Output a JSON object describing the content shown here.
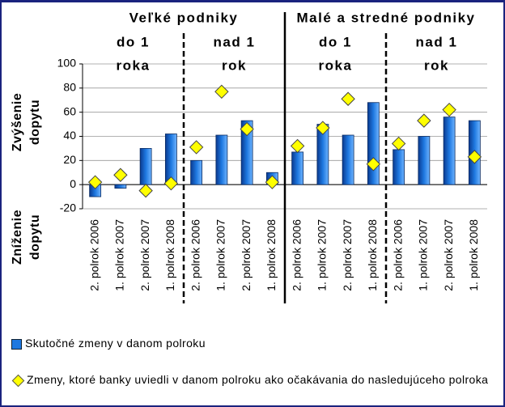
{
  "chart_data": {
    "type": "bar",
    "groups": [
      {
        "label": "Veľké podniky",
        "subgroups": [
          [
            "do 1",
            "roka"
          ],
          [
            "nad 1",
            "rok"
          ]
        ]
      },
      {
        "label": "Malé a stredné podniky",
        "subgroups": [
          [
            "do 1",
            "roka"
          ],
          [
            "nad 1",
            "rok"
          ]
        ]
      }
    ],
    "y_axis_labels": [
      [
        "Zvýšenie",
        "dopytu"
      ],
      [
        "Zníženie",
        "dopytu"
      ]
    ],
    "categories": [
      "2. polrok 2006",
      "1. polrok 2007",
      "2. polrok 2007",
      "1. polrok 2008",
      "2. polrok 2006",
      "1. polrok 2007",
      "2. polrok 2007",
      "1. polrok 2008",
      "2. polrok 2006",
      "1. polrok 2007",
      "2. polrok 2007",
      "1. polrok 2008",
      "2. polrok 2006",
      "1. polrok 2007",
      "2. polrok 2007",
      "1. polrok 2008"
    ],
    "series": [
      {
        "name": "Skutočné zmeny v danom polroku",
        "color": "#1e78e0",
        "marker": "bar",
        "values": [
          -10,
          -3,
          30,
          42,
          20,
          41,
          53,
          10,
          27,
          50,
          41,
          68,
          29,
          40,
          56,
          53
        ]
      },
      {
        "name": "Zmeny, ktoré banky uviedli v danom polroku ako očakávania do nasledujúceho polroka",
        "color": "#ffff00",
        "marker": "diamond",
        "values": [
          2,
          8,
          -5,
          1,
          31,
          77,
          46,
          2,
          32,
          47,
          71,
          17,
          34,
          53,
          62,
          23
        ]
      }
    ],
    "ylim": [
      -20,
      100
    ],
    "yticks": [
      -20,
      0,
      20,
      40,
      60,
      80,
      100
    ],
    "grid": true
  }
}
